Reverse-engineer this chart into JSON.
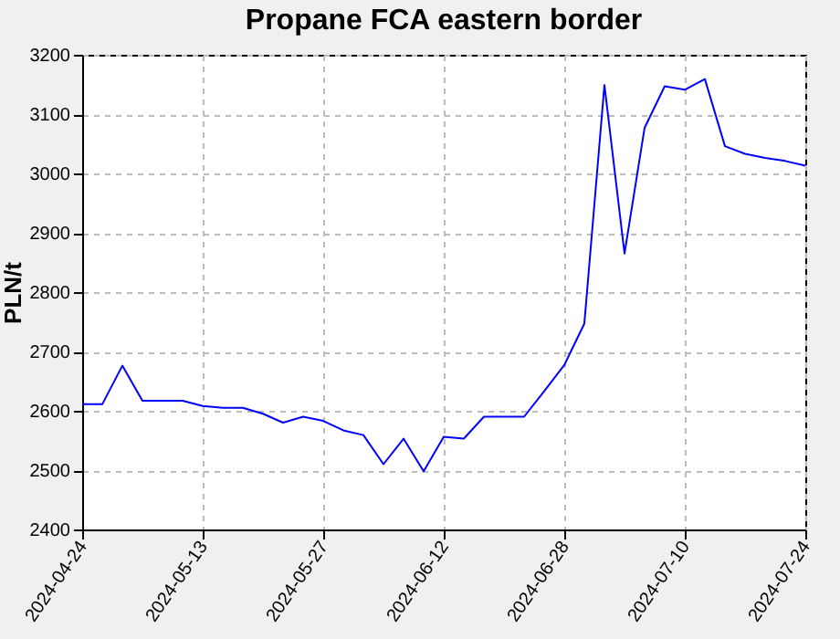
{
  "chart_data": {
    "type": "line",
    "title": "Propane FCA eastern border",
    "ylabel": "PLN/t",
    "categories": [
      "2024-04-24",
      null,
      null,
      null,
      null,
      null,
      "2024-05-13",
      null,
      null,
      null,
      null,
      null,
      "2024-05-27",
      null,
      null,
      null,
      null,
      null,
      "2024-06-12",
      null,
      null,
      null,
      null,
      null,
      "2024-06-28",
      null,
      null,
      null,
      null,
      null,
      "2024-07-10",
      null,
      null,
      null,
      null,
      null,
      "2024-07-24"
    ],
    "series": [
      {
        "color": "#0000ff",
        "values": [
          2611,
          2611,
          2676,
          2617,
          2617,
          2617,
          2608,
          2605,
          2605,
          2595,
          2580,
          2590,
          2583,
          2567,
          2559,
          2510,
          2553,
          2498,
          2556,
          2553,
          2590,
          2590,
          2590,
          2633,
          2677,
          2747,
          3149,
          2865,
          3077,
          3147,
          3141,
          3159,
          3046,
          3033,
          3026,
          3021,
          3013
        ]
      }
    ],
    "ylim": [
      2400,
      3200
    ],
    "yticks": [
      2400,
      2500,
      2600,
      2700,
      2800,
      2900,
      3000,
      3100,
      3200
    ],
    "grid": true,
    "marker": "none",
    "line_style": "solid"
  }
}
